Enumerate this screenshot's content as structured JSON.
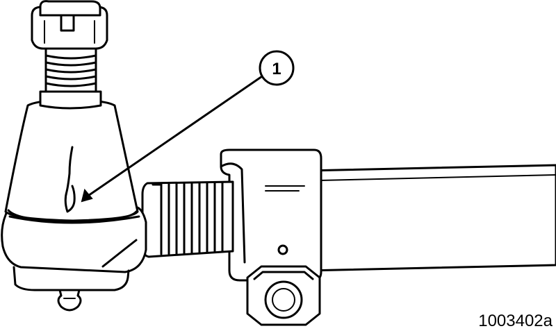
{
  "callouts": [
    {
      "number": "1"
    }
  ],
  "figure": {
    "id": "1003402a"
  }
}
